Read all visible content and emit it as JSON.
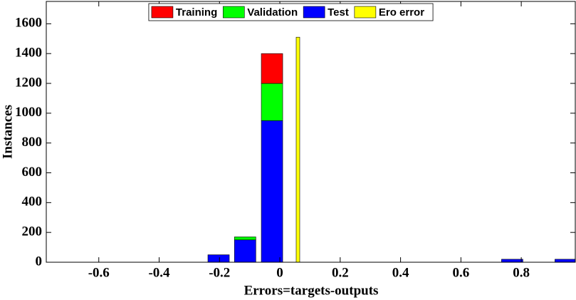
{
  "chart_data": {
    "type": "bar",
    "stacked": true,
    "xlabel": "Errors=targets-outputs",
    "ylabel": "Instances",
    "x": [
      -0.203,
      -0.115,
      -0.026,
      0.77,
      0.947
    ],
    "series": [
      {
        "name": "Test",
        "color": "#0000ff",
        "values": [
          50,
          150,
          950,
          20,
          20
        ]
      },
      {
        "name": "Validation",
        "color": "#00ff00",
        "values": [
          0,
          20,
          250,
          0,
          0
        ]
      },
      {
        "name": "Training",
        "color": "#ff0000",
        "values": [
          0,
          0,
          200,
          0,
          0
        ]
      }
    ],
    "zero_error": {
      "name": "Ero error",
      "color": "#ffff00",
      "x": 0.06,
      "value": 1510
    },
    "legend_order": [
      2,
      1,
      0
    ],
    "xlim": [
      -0.774,
      0.979
    ],
    "xticks": [
      -0.6,
      -0.4,
      -0.2,
      0,
      0.2,
      0.4,
      0.6,
      0.8
    ],
    "ylim": [
      0,
      1750
    ],
    "yticks": [
      0,
      200,
      400,
      600,
      800,
      1000,
      1200,
      1400,
      1600
    ],
    "legend": "top"
  }
}
